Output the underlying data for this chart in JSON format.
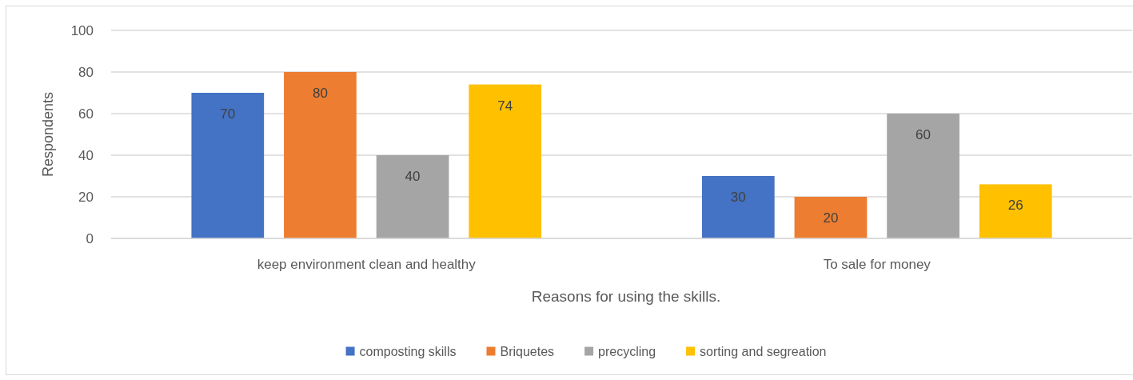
{
  "chart_data": {
    "type": "bar",
    "xlabel": "Reasons for using the skills.",
    "ylabel": "Respondents",
    "categories": [
      "keep environment clean and healthy",
      "To sale for money"
    ],
    "series": [
      {
        "name": "composting skills",
        "color": "#4472c4",
        "values": [
          70,
          30
        ]
      },
      {
        "name": "Briquetes",
        "color": "#ed7d31",
        "values": [
          80,
          20
        ]
      },
      {
        "name": "precycling",
        "color": "#a5a5a5",
        "values": [
          40,
          60
        ]
      },
      {
        "name": "sorting and segreation",
        "color": "#ffc000",
        "values": [
          74,
          26
        ]
      }
    ],
    "ylim": [
      0,
      100
    ],
    "yticks": [
      0,
      20,
      40,
      60,
      80,
      100
    ],
    "grid": "y",
    "data_labels": true,
    "legend": "bottom"
  }
}
